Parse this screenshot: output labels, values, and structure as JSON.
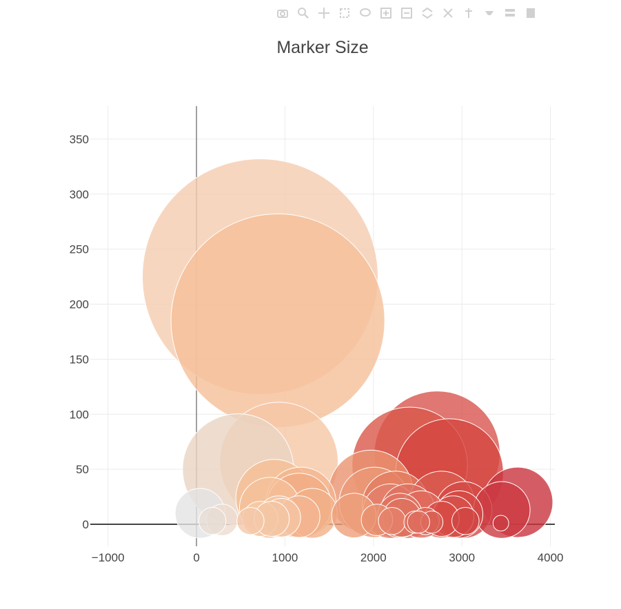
{
  "modebar": {
    "icons": [
      "camera-icon",
      "zoom-icon",
      "pan-icon",
      "box-select-icon",
      "lasso-icon",
      "zoom-in-icon",
      "zoom-out-icon",
      "autoscale-icon",
      "reset-axes-icon",
      "spike-lines-icon",
      "hover-closest-icon",
      "hover-compare-icon",
      "plotly-logo-icon"
    ],
    "color": "#d0d0d0"
  },
  "chart_data": {
    "type": "scatter",
    "title": "Marker Size",
    "xlabel": "",
    "ylabel": "",
    "xlim": [
      -1200,
      4050
    ],
    "ylim": [
      -20,
      380
    ],
    "xticks": [
      -1000,
      0,
      1000,
      2000,
      3000,
      4000
    ],
    "xtick_labels": [
      "−1000",
      "0",
      "1000",
      "2000",
      "3000",
      "4000"
    ],
    "yticks": [
      0,
      50,
      100,
      150,
      200,
      250,
      300,
      350
    ],
    "ytick_labels": [
      "0",
      "50",
      "100",
      "150",
      "200",
      "250",
      "300",
      "350"
    ],
    "grid": true,
    "legend": "none",
    "marker_sizing": "area proportional to y value; color from orange-red scale by x",
    "points": [
      {
        "x": 720,
        "y": 225,
        "color": "#f5ccaf"
      },
      {
        "x": 920,
        "y": 185,
        "color": "#f5bf99"
      },
      {
        "x": 470,
        "y": 50,
        "color": "#ead4c3"
      },
      {
        "x": 930,
        "y": 57,
        "color": "#f5c7a5"
      },
      {
        "x": 2720,
        "y": 64,
        "color": "#d8554f"
      },
      {
        "x": 2410,
        "y": 54,
        "color": "#d9574a"
      },
      {
        "x": 2860,
        "y": 47,
        "color": "#d44640"
      },
      {
        "x": 1970,
        "y": 29,
        "color": "#ea9470"
      },
      {
        "x": 880,
        "y": 24,
        "color": "#f5be94"
      },
      {
        "x": 1180,
        "y": 20,
        "color": "#f3b58d"
      },
      {
        "x": 3630,
        "y": 20,
        "color": "#c9353f"
      },
      {
        "x": 2010,
        "y": 20,
        "color": "#eb9875"
      },
      {
        "x": 2250,
        "y": 18,
        "color": "#e37c60"
      },
      {
        "x": 1160,
        "y": 17,
        "color": "#f1ad85"
      },
      {
        "x": 2770,
        "y": 18,
        "color": "#db5d52"
      },
      {
        "x": 830,
        "y": 15,
        "color": "#f5c09a"
      },
      {
        "x": 3020,
        "y": 13,
        "color": "#d44a45"
      },
      {
        "x": 3450,
        "y": 13,
        "color": "#cc3b42"
      },
      {
        "x": 2190,
        "y": 12,
        "color": "#e4806a"
      },
      {
        "x": 2390,
        "y": 12,
        "color": "#df7160"
      },
      {
        "x": 40,
        "y": 10,
        "color": "#e4e4e4"
      },
      {
        "x": 1310,
        "y": 10,
        "color": "#f1b088"
      },
      {
        "x": 2540,
        "y": 9,
        "color": "#e06a5c"
      },
      {
        "x": 2970,
        "y": 9,
        "color": "#d54a45"
      },
      {
        "x": 1780,
        "y": 8,
        "color": "#ee9f7a"
      },
      {
        "x": 2300,
        "y": 8,
        "color": "#e07462"
      },
      {
        "x": 2900,
        "y": 7,
        "color": "#d6504a"
      },
      {
        "x": 930,
        "y": 7,
        "color": "#f5c5a2"
      },
      {
        "x": 1160,
        "y": 7,
        "color": "#f3b591"
      },
      {
        "x": 2320,
        "y": 6,
        "color": "#df725f"
      },
      {
        "x": 960,
        "y": 6,
        "color": "#f5c4a2"
      },
      {
        "x": 720,
        "y": 5,
        "color": "#f6caa8"
      },
      {
        "x": 850,
        "y": 5,
        "color": "#f4c6a4"
      },
      {
        "x": 2770,
        "y": 5,
        "color": "#d84a45"
      },
      {
        "x": 2040,
        "y": 4,
        "color": "#e9906f"
      },
      {
        "x": 290,
        "y": 4,
        "color": "#eddccf"
      },
      {
        "x": 180,
        "y": 3,
        "color": "#e7ddd4"
      },
      {
        "x": 610,
        "y": 3,
        "color": "#f4c8a9"
      },
      {
        "x": 2210,
        "y": 3,
        "color": "#e5816a"
      },
      {
        "x": 3040,
        "y": 3,
        "color": "#d14544"
      },
      {
        "x": 2590,
        "y": 3,
        "color": "#dc6657"
      },
      {
        "x": 2470,
        "y": 2,
        "color": "#df6e5d"
      },
      {
        "x": 2660,
        "y": 2,
        "color": "#db6054"
      },
      {
        "x": 2510,
        "y": 2,
        "color": "#de6b5c"
      },
      {
        "x": 3440,
        "y": 1,
        "color": "#cb3d43"
      }
    ]
  }
}
